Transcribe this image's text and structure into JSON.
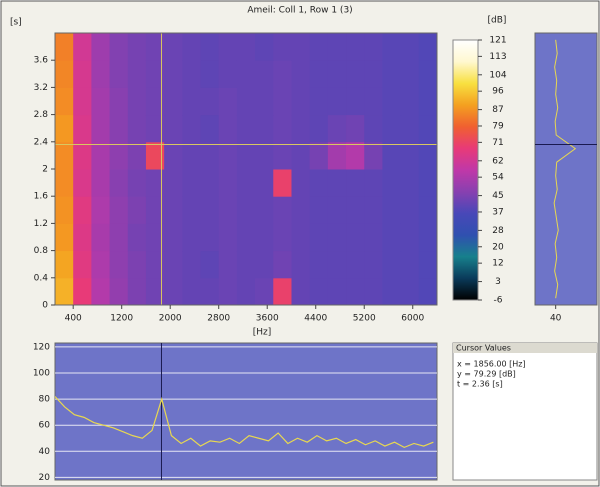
{
  "chart_data": [
    {
      "type": "heatmap",
      "title": "Ameil: Coll 1, Row 1 (3)",
      "y_label": "[s]",
      "x_label": "[Hz]",
      "z_label": "[dB]",
      "x": [
        250,
        550,
        850,
        1150,
        1450,
        1750,
        2050,
        2350,
        2650,
        2950,
        3250,
        3550,
        3850,
        4150,
        4450,
        4750,
        5050,
        5350,
        5650,
        5950,
        6250
      ],
      "y": [
        0.2,
        0.6,
        1.0,
        1.4,
        1.8,
        2.2,
        2.6,
        3.0,
        3.4,
        3.8
      ],
      "z": [
        [
          92,
          68,
          55,
          49,
          45,
          43,
          42,
          41,
          41,
          42,
          41,
          42,
          70,
          41,
          40,
          40,
          40,
          40,
          39,
          39,
          38
        ],
        [
          90,
          66,
          54,
          48,
          45,
          43,
          42,
          41,
          40,
          42,
          41,
          41,
          43,
          41,
          40,
          40,
          40,
          40,
          39,
          39,
          38
        ],
        [
          88,
          65,
          53,
          48,
          44,
          43,
          42,
          41,
          41,
          42,
          41,
          41,
          42,
          41,
          40,
          40,
          40,
          40,
          39,
          39,
          38
        ],
        [
          87,
          66,
          54,
          48,
          45,
          43,
          42,
          41,
          41,
          42,
          41,
          41,
          42,
          41,
          40,
          40,
          40,
          40,
          39,
          39,
          38
        ],
        [
          86,
          64,
          53,
          47,
          44,
          43,
          42,
          41,
          41,
          42,
          41,
          41,
          70,
          41,
          40,
          40,
          40,
          40,
          39,
          39,
          38
        ],
        [
          86,
          65,
          53,
          48,
          45,
          72,
          42,
          41,
          41,
          42,
          41,
          41,
          42,
          41,
          44,
          52,
          55,
          44,
          39,
          39,
          38
        ],
        [
          88,
          64,
          52,
          47,
          44,
          43,
          42,
          41,
          40,
          42,
          41,
          41,
          42,
          41,
          40,
          42,
          43,
          40,
          39,
          39,
          38
        ],
        [
          86,
          63,
          52,
          47,
          44,
          43,
          42,
          41,
          41,
          42,
          41,
          41,
          42,
          41,
          40,
          40,
          40,
          40,
          39,
          39,
          38
        ],
        [
          85,
          63,
          51,
          46,
          44,
          43,
          42,
          41,
          40,
          41,
          41,
          41,
          42,
          41,
          40,
          40,
          40,
          40,
          39,
          39,
          38
        ],
        [
          84,
          62,
          51,
          46,
          44,
          43,
          42,
          41,
          40,
          41,
          41,
          40,
          41,
          41,
          40,
          40,
          40,
          40,
          39,
          39,
          38
        ]
      ],
      "xlim": [
        100,
        6400
      ],
      "ylim": [
        0,
        4
      ],
      "xticks": [
        400,
        1200,
        2000,
        2800,
        3600,
        4400,
        5200,
        6000
      ],
      "yticks": [
        0,
        0.4,
        0.8,
        1.2,
        1.6,
        2,
        2.4,
        2.8,
        3.2,
        3.6
      ],
      "zlim": [
        -6,
        121
      ],
      "zticks": [
        121,
        113,
        104,
        96,
        87,
        79,
        71,
        62,
        54,
        45,
        37,
        28,
        20,
        12,
        3,
        -6
      ],
      "colormap": [
        "#000000",
        "#0a3a5a",
        "#17808c",
        "#3050b0",
        "#4848b8",
        "#8840b0",
        "#c038a8",
        "#e83a78",
        "#f06030",
        "#f4a020",
        "#f8e040",
        "#fff8d0",
        "#ffffff"
      ],
      "cursor": {
        "x": 1856,
        "y": 2.36
      },
      "cursor_color": "#d8c860"
    },
    {
      "type": "profile",
      "y": [
        0.1,
        0.3,
        0.5,
        0.7,
        0.9,
        1.1,
        1.3,
        1.5,
        1.7,
        1.9,
        2.1,
        2.3,
        2.5,
        2.7,
        2.9,
        3.1,
        3.3,
        3.5,
        3.7,
        3.9
      ],
      "values": [
        40,
        44,
        38,
        42,
        39,
        45,
        41,
        37,
        43,
        40,
        42,
        78,
        41,
        39,
        44,
        40,
        42,
        38,
        43,
        40
      ],
      "xlim": [
        0,
        120
      ],
      "ylim": [
        0,
        4
      ],
      "xticks": [
        40
      ],
      "color": "#e8d850",
      "background": "#6e74c8"
    },
    {
      "type": "line",
      "x": [
        100,
        260,
        420,
        580,
        740,
        900,
        1060,
        1220,
        1380,
        1540,
        1700,
        1860,
        2020,
        2180,
        2340,
        2500,
        2660,
        2820,
        2980,
        3140,
        3300,
        3460,
        3620,
        3780,
        3940,
        4100,
        4260,
        4420,
        4580,
        4740,
        4900,
        5060,
        5220,
        5380,
        5540,
        5700,
        5860,
        6020,
        6180,
        6340
      ],
      "values": [
        82,
        74,
        68,
        66,
        62,
        60,
        58,
        55,
        52,
        50,
        56,
        80,
        52,
        46,
        50,
        44,
        48,
        47,
        50,
        46,
        52,
        50,
        48,
        54,
        46,
        50,
        47,
        52,
        48,
        50,
        46,
        49,
        45,
        48,
        44,
        47,
        43,
        46,
        44,
        47
      ],
      "xlim": [
        100,
        6400
      ],
      "ylim": [
        18,
        123
      ],
      "yticks": [
        20,
        40,
        60,
        80,
        100,
        120
      ],
      "grid": true,
      "color": "#e8d850",
      "background": "#6e74c8",
      "cursor_x": 1856,
      "cursor_color": "#1a1a50"
    }
  ],
  "cursor_values": {
    "header": "Cursor Values",
    "lines": [
      "x = 1856.00 [Hz]",
      "y = 79.29 [dB]",
      "t = 2.36 [s]"
    ]
  }
}
